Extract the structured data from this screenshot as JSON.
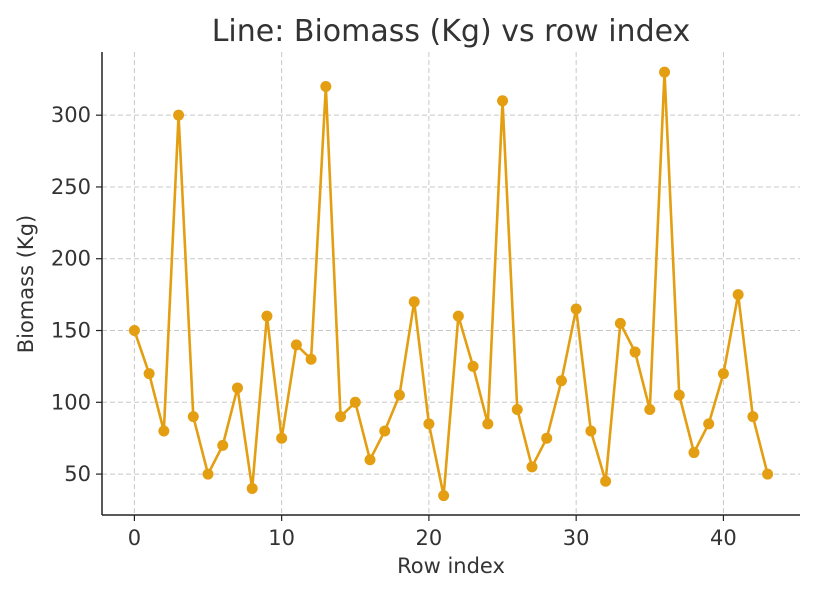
{
  "chart_data": {
    "type": "line",
    "title": "Line: Biomass (Kg) vs row index",
    "xlabel": "Row index",
    "ylabel": "Biomass (Kg)",
    "xlim": [
      -2.2,
      45.2
    ],
    "ylim": [
      21.5,
      344
    ],
    "xticks": [
      0,
      10,
      20,
      30,
      40
    ],
    "yticks": [
      50,
      100,
      150,
      200,
      250,
      300
    ],
    "grid": true,
    "color": "#E39E12",
    "series": [
      {
        "x": [
          0,
          1,
          2,
          3,
          4,
          5,
          6,
          7,
          8,
          9,
          10,
          11,
          12,
          13,
          14,
          15,
          16,
          17,
          18,
          19,
          20,
          21,
          22,
          23,
          24,
          25,
          26,
          27,
          28,
          29,
          30,
          31,
          32,
          33,
          34,
          35,
          36,
          37,
          38,
          39,
          40,
          41,
          42,
          43
        ],
        "values": [
          150,
          120,
          80,
          300,
          90,
          50,
          70,
          110,
          40,
          160,
          75,
          140,
          130,
          320,
          90,
          100,
          60,
          80,
          105,
          170,
          85,
          35,
          160,
          125,
          85,
          310,
          95,
          55,
          75,
          115,
          165,
          80,
          45,
          155,
          135,
          95,
          330,
          105,
          65,
          85,
          120,
          175,
          90,
          50
        ]
      }
    ]
  }
}
